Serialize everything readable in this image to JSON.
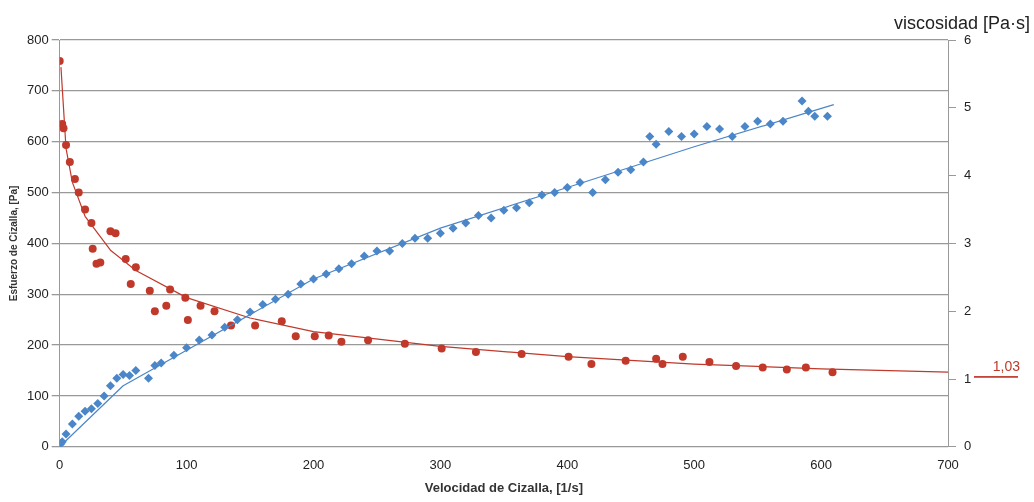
{
  "chart_data": {
    "type": "scatter",
    "xlabel": "Velocidad de Cizalla, [1/s]",
    "ylabel": "Esfuerzo de Cizalla, [Pa]",
    "y2label": "viscosidad [Pa·s]",
    "xlim": [
      0,
      700
    ],
    "xticks": [
      0,
      100,
      200,
      300,
      400,
      500,
      600,
      700
    ],
    "ylim": [
      0,
      800
    ],
    "yticks": [
      0,
      100,
      200,
      300,
      400,
      500,
      600,
      700,
      800
    ],
    "y2lim": [
      0,
      6
    ],
    "y2ticks": [
      0,
      1,
      2,
      3,
      4,
      5,
      6
    ],
    "grid": "y",
    "legend": false,
    "marker": "diamond",
    "series": [
      {
        "color": "#4a86c8",
        "x": [
          1,
          2,
          5,
          10,
          15,
          20,
          25,
          30,
          35,
          40,
          45,
          50,
          55,
          60,
          70,
          75,
          80,
          90,
          100,
          110,
          120,
          130,
          140,
          150,
          160,
          170,
          180,
          190,
          200,
          210,
          220,
          230,
          240,
          250,
          260,
          270,
          280,
          290,
          300,
          310,
          320,
          330,
          340,
          350,
          360,
          370,
          380,
          390,
          400,
          410,
          420,
          430,
          440,
          450,
          460,
          465,
          470,
          480,
          490,
          500,
          510,
          520,
          530,
          540,
          550,
          560,
          570,
          585,
          590,
          595,
          605
        ],
        "values": [
          6,
          10,
          25,
          45,
          60,
          70,
          75,
          85,
          100,
          120,
          135,
          142,
          140,
          150,
          135,
          160,
          165,
          180,
          195,
          210,
          220,
          235,
          250,
          265,
          280,
          290,
          300,
          320,
          330,
          340,
          350,
          360,
          375,
          385,
          385,
          400,
          410,
          410,
          420,
          430,
          440,
          455,
          450,
          465,
          470,
          480,
          495,
          500,
          510,
          520,
          500,
          525,
          540,
          545,
          560,
          610,
          595,
          620,
          610,
          615,
          630,
          625,
          610,
          630,
          640,
          635,
          640,
          680,
          660,
          650,
          650
        ]
      },
      {
        "type": "line",
        "color": "#4a86c8",
        "marker": "none",
        "x": [
          0,
          50,
          100,
          200,
          300,
          400,
          500,
          610
        ],
        "values": [
          0,
          120,
          190,
          330,
          430,
          510,
          590,
          673
        ]
      },
      {
        "color": "#c0392b",
        "marker": "circle",
        "axis": "y2",
        "x": [
          0,
          2,
          3,
          5,
          8,
          12,
          15,
          20,
          25,
          26,
          29,
          32,
          40,
          44,
          52,
          56,
          60,
          71,
          75,
          84,
          87,
          99,
          101,
          111,
          122,
          135,
          154,
          175,
          186,
          201,
          212,
          222,
          243,
          272,
          301,
          328,
          364,
          401,
          419,
          446,
          470,
          475,
          491,
          512,
          533,
          554,
          573,
          588,
          609
        ],
        "values": [
          5.69,
          4.76,
          4.7,
          4.45,
          4.2,
          3.95,
          3.75,
          3.5,
          3.3,
          2.92,
          2.7,
          2.72,
          3.18,
          3.15,
          2.77,
          2.4,
          2.65,
          2.3,
          2.0,
          2.08,
          2.32,
          2.2,
          1.87,
          2.08,
          2.0,
          1.79,
          1.79,
          1.85,
          1.63,
          1.63,
          1.64,
          1.55,
          1.57,
          1.52,
          1.45,
          1.4,
          1.37,
          1.33,
          1.22,
          1.27,
          1.3,
          1.22,
          1.33,
          1.25,
          1.19,
          1.17,
          1.14,
          1.17,
          1.1
        ]
      },
      {
        "type": "line",
        "color": "#c0392b",
        "marker": "none",
        "axis": "y2",
        "x": [
          1,
          5,
          10,
          20,
          40,
          60,
          100,
          150,
          200,
          300,
          400,
          500,
          600,
          700
        ],
        "values": [
          5.6,
          4.4,
          3.9,
          3.4,
          2.9,
          2.6,
          2.2,
          1.9,
          1.7,
          1.48,
          1.33,
          1.22,
          1.15,
          1.1
        ]
      }
    ],
    "ref_lines": [
      {
        "axis": "y2",
        "value": 1.03,
        "label": "1,03",
        "color": "#c0392b"
      }
    ]
  }
}
